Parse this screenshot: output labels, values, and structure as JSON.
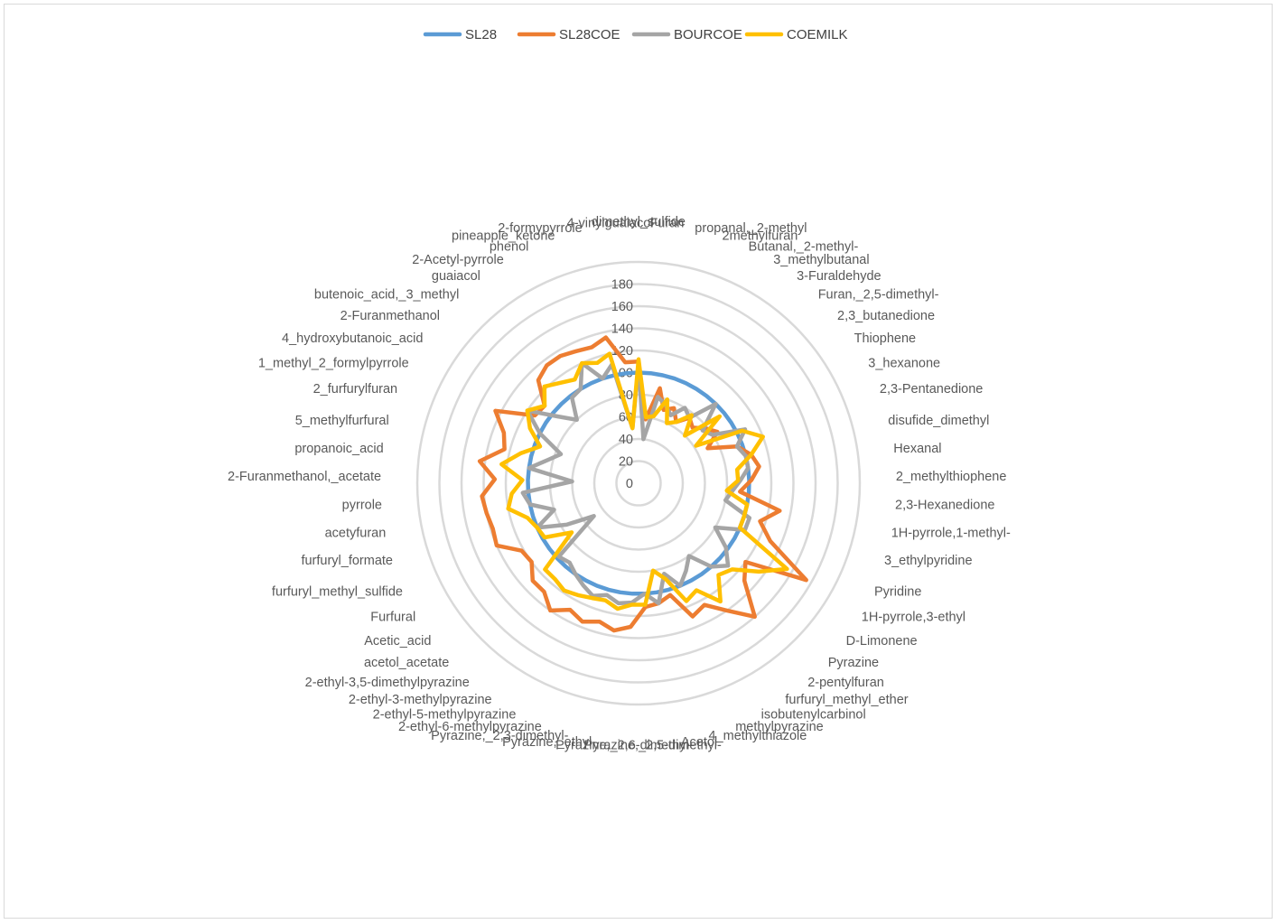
{
  "chart_data": {
    "type": "radar",
    "title": "",
    "legend_position": "top",
    "rmin": 0,
    "rmax": 200,
    "ticks": [
      0,
      20,
      40,
      60,
      80,
      100,
      120,
      140,
      160,
      180
    ],
    "categories": [
      "dimethyl_sulfide",
      "Furan",
      "propanal,_2-methyl",
      "2methylfuran",
      "Butanal,_2-methyl-",
      "3_methylbutanal",
      "3-Furaldehyde",
      "Furan,_2,5-dimethyl-",
      "2,3_butanedione",
      "Thiophene",
      "3_hexanone",
      "2,3-Pentanedione",
      "disufide_dimethyl",
      "Hexanal",
      "2_methylthiophene",
      "2,3-Hexanedione",
      "1H-pyrrole,1-methyl-",
      "3_ethylpyridine",
      "Pyridine",
      "1H-pyrrole,3-ethyl",
      "D-Limonene",
      "Pyrazine",
      "2-pentylfuran",
      "furfuryl_methyl_ether",
      "isobutenylcarbinol",
      "methylpyrazine",
      "4_methylthiazole",
      "Acetol",
      "Pyrazine,_2,5-dimethyl-",
      "Pyrazine,_2,6-dimethyl-",
      "Pyrazine,_ethyl-",
      "Pyrazine,_2,3-dimethyl-",
      "2-ethyl-6-methylpyrazine",
      "2-ethyl-5-methylpyrazine",
      "2-ethyl-3-methylpyrazine",
      "2-ethyl-3,5-dimethylpyrazine",
      "acetol_acetate",
      "Acetic_acid",
      "Furfural",
      "furfuryl_methyl_sulfide",
      "furfuryl_formate",
      "acetyfuran",
      "pyrrole",
      "2-Furanmethanol,_acetate",
      "propanoic_acid",
      "5_methylfurfural",
      "2_furfurylfuran",
      "1_methyl_2_formylpyrrole",
      "4_hydroxybutanoic_acid",
      "2-Furanmethanol",
      "butenoic_acid,_3_methyl",
      "guaiacol",
      "2-Acetyl-pyrrole",
      "phenol",
      "pineapple_ketone",
      "2-formypyrrole",
      "4-vinylguaiacol"
    ],
    "series": [
      {
        "name": "SL28",
        "color": "#5b9bd5",
        "values": [
          100,
          100,
          100,
          100,
          100,
          100,
          100,
          100,
          100,
          100,
          100,
          100,
          100,
          100,
          100,
          100,
          100,
          100,
          100,
          100,
          100,
          100,
          100,
          100,
          100,
          100,
          100,
          100,
          100,
          100,
          100,
          100,
          100,
          100,
          100,
          100,
          100,
          100,
          100,
          100,
          100,
          100,
          100,
          100,
          100,
          100,
          100,
          100,
          100,
          100,
          100,
          100,
          100,
          100,
          100,
          100,
          100
        ]
      },
      {
        "name": "SL28COE",
        "color": "#ed7d31",
        "values": [
          110,
          58,
          88,
          70,
          75,
          65,
          75,
          70,
          78,
          85,
          70,
          95,
          105,
          110,
          102,
          92,
          130,
          115,
          130,
          175,
          120,
          130,
          160,
          140,
          125,
          130,
          105,
          110,
          112,
          130,
          135,
          130,
          135,
          130,
          140,
          130,
          130,
          120,
          122,
          140,
          138,
          140,
          142,
          130,
          145,
          125,
          130,
          145,
          112,
          110,
          130,
          135,
          135,
          132,
          130,
          135,
          110
        ]
      },
      {
        "name": "BOURCOE",
        "color": "#a5a5a5",
        "values": [
          108,
          40,
          80,
          75,
          68,
          80,
          75,
          100,
          75,
          80,
          108,
          95,
          100,
          100,
          92,
          85,
          80,
          105,
          105,
          80,
          98,
          110,
          100,
          80,
          90,
          100,
          85,
          110,
          100,
          108,
          110,
          105,
          110,
          105,
          100,
          95,
          98,
          50,
          75,
          100,
          80,
          100,
          105,
          60,
          100,
          85,
          75,
          100,
          120,
          95,
          80,
          98,
          100,
          120,
          100,
          110,
          50
        ]
      },
      {
        "name": "COEMILK",
        "color": "#ffc000",
        "values": [
          112,
          60,
          62,
          80,
          60,
          65,
          78,
          60,
          95,
          62,
          105,
          120,
          105,
          90,
          90,
          80,
          100,
          100,
          100,
          155,
          135,
          115,
          110,
          130,
          110,
          115,
          90,
          80,
          110,
          110,
          115,
          110,
          112,
          115,
          118,
          115,
          115,
          75,
          98,
          100,
          105,
          120,
          115,
          105,
          125,
          110,
          95,
          110,
          120,
          110,
          122,
          115,
          110,
          120,
          115,
          120,
          50
        ]
      }
    ]
  }
}
